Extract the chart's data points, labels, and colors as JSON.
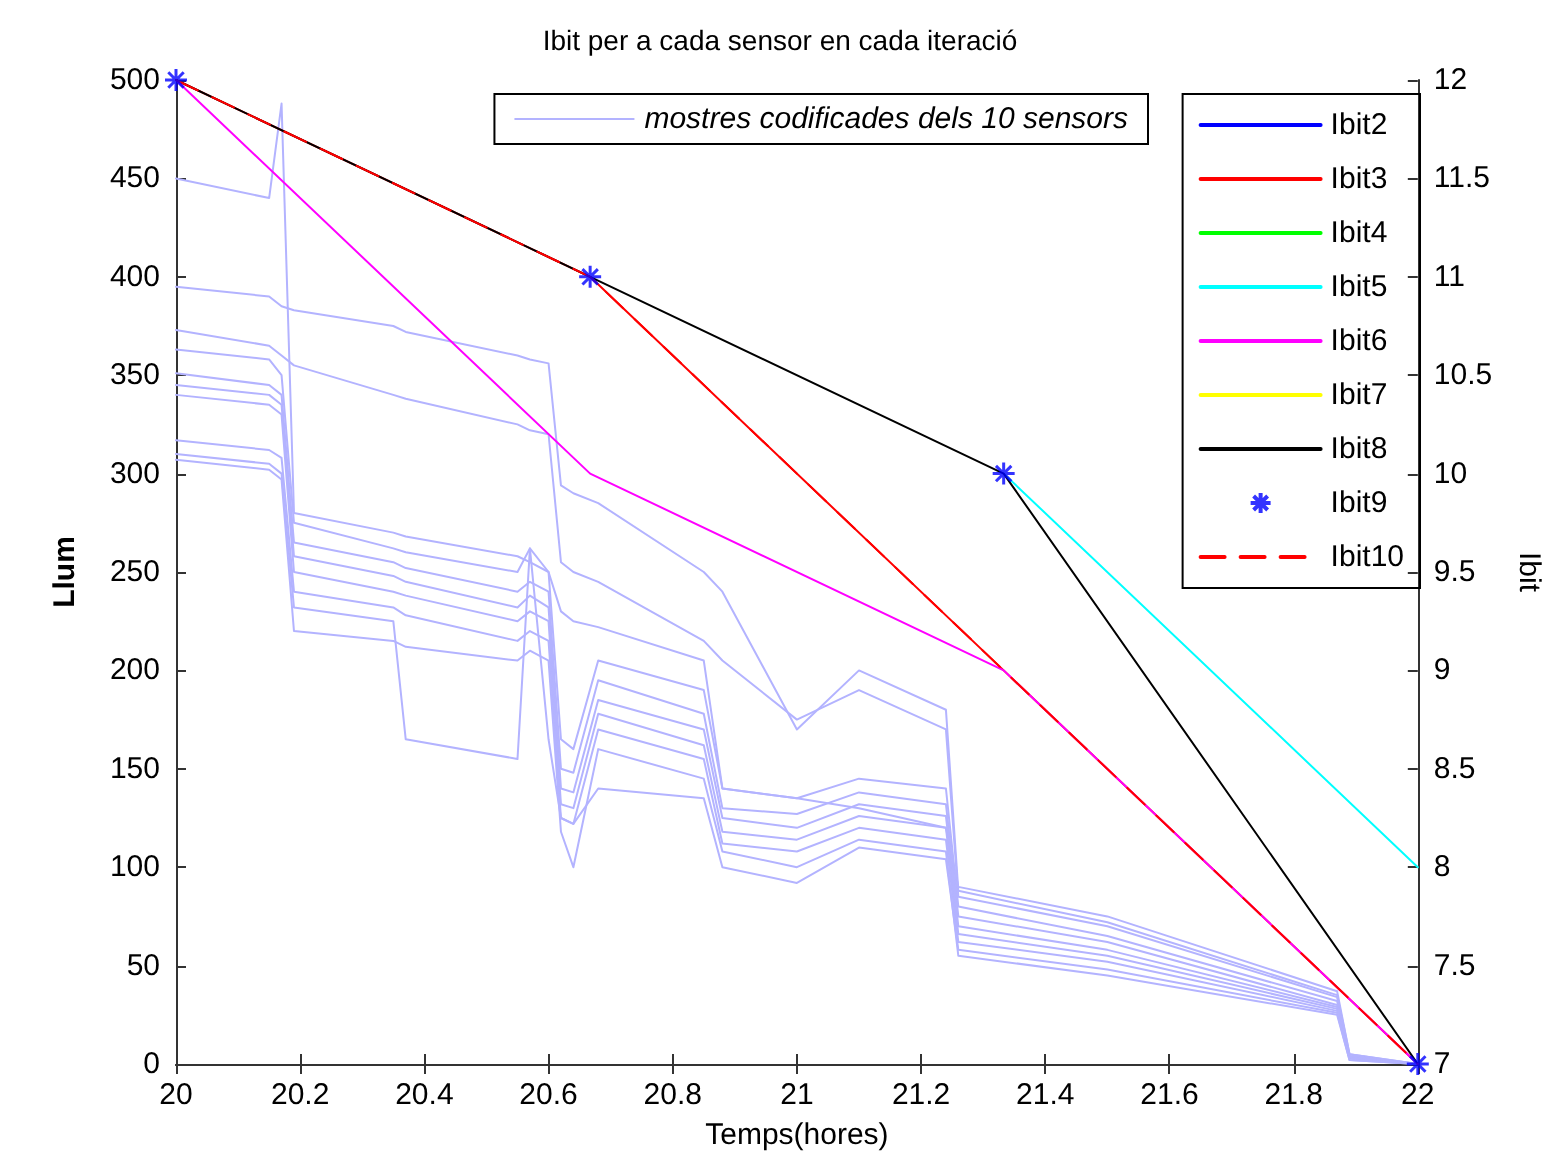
{
  "chart_data": {
    "type": "line",
    "title": "Ibit per a cada sensor en cada iteració",
    "xlabel": "Temps(hores)",
    "ylabel": "Llum",
    "y2label": "Ibit",
    "x": [
      20,
      20.15,
      20.17,
      20.19,
      20.35,
      20.37,
      20.55,
      20.57,
      20.6,
      20.62,
      20.64,
      20.68,
      20.85,
      20.88,
      21.0,
      21.1,
      21.24,
      21.26,
      21.5,
      21.87,
      21.89,
      22
    ],
    "xlim": [
      20,
      22
    ],
    "xticks": [
      20,
      20.2,
      20.4,
      20.6,
      20.8,
      21,
      21.2,
      21.4,
      21.6,
      21.8,
      22
    ],
    "ylim": [
      0,
      500
    ],
    "yticks": [
      0,
      50,
      100,
      150,
      200,
      250,
      300,
      350,
      400,
      450,
      500
    ],
    "y2lim": [
      7,
      12
    ],
    "y2ticks": [
      7,
      7.5,
      8,
      8.5,
      9,
      9.5,
      10,
      10.5,
      11,
      11.5,
      12
    ],
    "grid": false,
    "legend": "top right",
    "marker": "none",
    "line_style": "solid",
    "series": [
      {
        "name": "mostres codificades dels 10 sensors",
        "color": "#b3b3ff",
        "values": [
          450,
          440,
          488,
          280,
          270,
          268,
          258,
          255,
          250,
          230,
          225,
          222,
          205,
          140,
          135,
          130,
          120,
          90,
          75,
          37,
          5,
          0
        ]
      },
      {
        "color": "#b3b3ff",
        "values": [
          395,
          390,
          385,
          383,
          375,
          372,
          360,
          358,
          356,
          294,
          290,
          285,
          250,
          240,
          170,
          200,
          180,
          88,
          72,
          35,
          5,
          0
        ]
      },
      {
        "color": "#b3b3ff",
        "values": [
          373,
          365,
          360,
          355,
          340,
          338,
          325,
          322,
          320,
          255,
          250,
          245,
          215,
          205,
          175,
          190,
          170,
          85,
          70,
          34,
          4,
          0
        ]
      },
      {
        "color": "#b3b3ff",
        "values": [
          363,
          358,
          350,
          275,
          262,
          260,
          250,
          262,
          250,
          165,
          160,
          205,
          190,
          140,
          135,
          145,
          140,
          80,
          65,
          32,
          4,
          0
        ]
      },
      {
        "color": "#b3b3ff",
        "values": [
          351,
          345,
          340,
          265,
          255,
          252,
          240,
          245,
          240,
          150,
          148,
          195,
          178,
          130,
          127,
          138,
          132,
          75,
          62,
          30,
          4,
          0
        ]
      },
      {
        "color": "#b3b3ff",
        "values": [
          345,
          340,
          335,
          258,
          248,
          245,
          232,
          238,
          232,
          140,
          138,
          185,
          170,
          125,
          120,
          132,
          126,
          70,
          58,
          29,
          3,
          0
        ]
      },
      {
        "color": "#b3b3ff",
        "values": [
          340,
          335,
          330,
          250,
          240,
          238,
          225,
          230,
          225,
          132,
          130,
          178,
          162,
          118,
          114,
          126,
          120,
          66,
          55,
          28,
          3,
          0
        ]
      },
      {
        "color": "#b3b3ff",
        "values": [
          317,
          312,
          308,
          240,
          232,
          228,
          215,
          220,
          215,
          125,
          122,
          170,
          155,
          112,
          108,
          120,
          114,
          62,
          52,
          27,
          3,
          0
        ]
      },
      {
        "color": "#b3b3ff",
        "values": [
          310,
          305,
          300,
          232,
          225,
          165,
          155,
          262,
          165,
          125,
          122,
          140,
          135,
          100,
          92,
          110,
          104,
          58,
          48,
          26,
          2,
          0
        ]
      },
      {
        "color": "#b3b3ff",
        "values": [
          307,
          302,
          297,
          220,
          215,
          212,
          205,
          210,
          205,
          118,
          100,
          160,
          145,
          108,
          100,
          114,
          108,
          55,
          45,
          25,
          2,
          0
        ]
      },
      {
        "name": "Ibit2",
        "color": "#0000ff",
        "axis": "y2",
        "values": [
          null,
          null,
          null,
          null,
          null,
          null,
          null,
          null,
          null,
          null,
          null,
          null,
          null,
          null,
          null,
          null,
          null,
          null,
          null,
          null,
          null,
          null
        ]
      },
      {
        "name": "Ibit3",
        "color": "#ff0000",
        "axis": "y2",
        "x": [
          20,
          20.667,
          21.333,
          22
        ],
        "values": [
          12,
          11,
          9,
          7
        ]
      },
      {
        "name": "Ibit4",
        "color": "#00ff00",
        "axis": "y2",
        "values": [
          null,
          null,
          null,
          null,
          null,
          null,
          null,
          null,
          null,
          null,
          null,
          null,
          null,
          null,
          null,
          null,
          null,
          null,
          null,
          null,
          null,
          null
        ]
      },
      {
        "name": "Ibit5",
        "color": "#00ffff",
        "axis": "y2",
        "x": [
          21.333,
          22
        ],
        "values": [
          10,
          8
        ]
      },
      {
        "name": "Ibit6",
        "color": "#ff00ff",
        "axis": "y2",
        "x": [
          20,
          20.667,
          21.333,
          22
        ],
        "values": [
          12,
          10,
          9,
          7
        ]
      },
      {
        "name": "Ibit7",
        "color": "#ffff00",
        "axis": "y2",
        "values": [
          null,
          null,
          null,
          null,
          null,
          null,
          null,
          null,
          null,
          null,
          null,
          null,
          null,
          null,
          null,
          null,
          null,
          null,
          null,
          null,
          null,
          null
        ]
      },
      {
        "name": "Ibit8",
        "color": "#000000",
        "axis": "y2",
        "x": [
          20,
          20.667,
          21.333,
          22
        ],
        "values": [
          12,
          11,
          10,
          7
        ]
      },
      {
        "name": "Ibit9",
        "color": "#0000ff",
        "axis": "y2",
        "type": "scatter",
        "marker": "cross",
        "x": [
          20,
          20.667,
          21.333,
          22
        ],
        "values": [
          12,
          11,
          10,
          7
        ]
      },
      {
        "name": "Ibit10",
        "color": "#ff0000",
        "axis": "y2",
        "line_style": "dashed",
        "x": [
          20,
          20.667,
          21.333,
          22
        ],
        "values": [
          12,
          11,
          9,
          7
        ]
      }
    ]
  }
}
